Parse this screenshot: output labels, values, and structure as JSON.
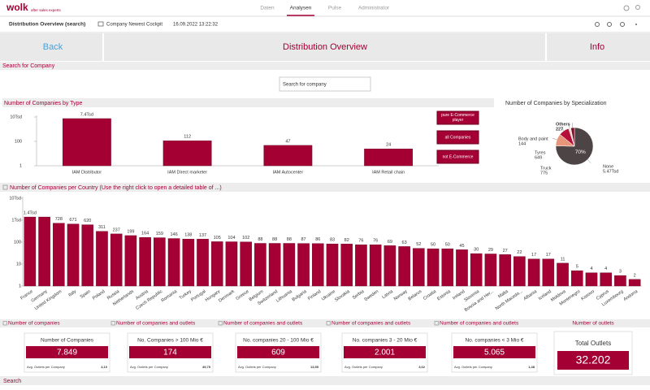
{
  "nav": {
    "logo": "wolk",
    "logo_sub": "after sales experts",
    "tabs": [
      "Daten",
      "Analysen",
      "Pulse",
      "Administrator"
    ],
    "active_tab": 1
  },
  "toolbar": {
    "title": "Distribution Overview (search)",
    "cockpit": "Company Newest Cockpit",
    "timestamp": "16.09.2022 13:22:32"
  },
  "buttons": {
    "back": "Back",
    "title": "Distribution Overview",
    "info": "Info"
  },
  "search": {
    "header": "Search for Company",
    "placeholder": "Search for company"
  },
  "filters": [
    "pure E-Commerce player",
    "all Companies",
    "not E-Commerce"
  ],
  "kpi": {
    "headers": [
      "Number of companies",
      "Number of companies and outlets",
      "Number of companies and outlets",
      "Number of companies and outlets",
      "Number of companies and outlets",
      "Number of outlets"
    ],
    "cards": [
      {
        "title": "Number of Companies",
        "value": "7.849",
        "sub_label": "Avg. Outlets per Company",
        "sub_value": "4,10"
      },
      {
        "title": "No. Companies > 100 Mio €",
        "value": "174",
        "sub_label": "Avg. Outlets per Company",
        "sub_value": "49,75"
      },
      {
        "title": "No. companies 20 - 100 Mio €",
        "value": "609",
        "sub_label": "Avg. Outlets per Company",
        "sub_value": "13,55"
      },
      {
        "title": "No. companies 3 - 20 Mio €",
        "value": "2.001",
        "sub_label": "Avg. Outlets per Company",
        "sub_value": "3,62"
      },
      {
        "title": "No. companies < 3 Mio €",
        "value": "5.065",
        "sub_label": "Avg. Outlets per Company",
        "sub_value": "1,48"
      }
    ],
    "total": {
      "title": "Total Outlets",
      "value": "32.202"
    }
  },
  "footer": "Search",
  "chart_data": [
    {
      "type": "bar",
      "title": "Number of Companies by Type",
      "log": true,
      "color": "#a50034",
      "categories": [
        "IAM Distributor",
        "IAM Direct marketer",
        "IAM Autocenter",
        "IAM Retail chain"
      ],
      "values": [
        7400,
        112,
        47,
        24
      ],
      "value_labels": [
        "7.4Tsd",
        "112",
        "47",
        "24"
      ],
      "ylim": [
        1,
        10000
      ],
      "yticks": [
        1,
        100,
        {
          "value": 10000,
          "label": "10Tsd"
        }
      ]
    },
    {
      "type": "pie",
      "title": "Number of Companies by Specialization",
      "categories": [
        "None",
        "Truck",
        "Tyres",
        "Body and paint",
        "Others"
      ],
      "values": [
        5470,
        775,
        649,
        144,
        227
      ],
      "value_labels": [
        "5.47Tsd",
        "775",
        "649",
        "144",
        "227"
      ],
      "percent_labels": [
        "70%",
        null,
        null,
        null,
        null
      ],
      "colors": [
        "#4d4446",
        "#e8967a",
        "#b5103a",
        "#f4d6cf",
        "#7a0f2a"
      ]
    },
    {
      "type": "bar",
      "title": "Number of Companies per Country (Use the right click to open a detailed table of ...)",
      "log": true,
      "color": "#a50034",
      "categories": [
        "France",
        "Germany",
        "United Kingdom",
        "Italy",
        "Spain",
        "Poland",
        "Russia",
        "Netherlands",
        "Austria",
        "Czech Republic",
        "Romania",
        "Turkey",
        "Portugal",
        "Hungary",
        "Denmark",
        "Greece",
        "Belgium",
        "Switzerland",
        "Lithuania",
        "Bulgaria",
        "Finland",
        "Ukraine",
        "Slovakia",
        "Serbia",
        "Sweden",
        "Latvia",
        "Norway",
        "Belarus",
        "Croatia",
        "Estonia",
        "Ireland",
        "Slovenia",
        "Bosnia and Her...",
        "Malta",
        "North Macedo...",
        "Albania",
        "Iceland",
        "Moldova",
        "Montenegro",
        "Kosovo",
        "Cyprus",
        "Luxembourg",
        "Andorra"
      ],
      "values": [
        1400,
        1400,
        728,
        671,
        620,
        311,
        237,
        199,
        164,
        159,
        146,
        138,
        137,
        105,
        104,
        102,
        88,
        88,
        88,
        87,
        86,
        83,
        82,
        76,
        76,
        69,
        63,
        52,
        50,
        50,
        45,
        30,
        29,
        27,
        22,
        17,
        17,
        11,
        5,
        4,
        4,
        3,
        2
      ],
      "value_labels": [
        "1.4Tsd",
        null,
        "728",
        "671",
        "620",
        "311",
        "237",
        "199",
        "164",
        "159",
        "146",
        "138",
        "137",
        "105",
        "104",
        "102",
        "88",
        "88",
        "88",
        "87",
        "86",
        "83",
        "82",
        "76",
        "76",
        "69",
        "63",
        "52",
        "50",
        "50",
        "45",
        "30",
        "29",
        "27",
        "22",
        "17",
        "17",
        "11",
        "5",
        "4",
        "4",
        "3",
        "2"
      ],
      "ylim": [
        1,
        10000
      ],
      "yticks": [
        1,
        10,
        100,
        {
          "value": 1000,
          "label": "1Tsd"
        },
        {
          "value": 10000,
          "label": "10Tsd"
        }
      ]
    }
  ]
}
